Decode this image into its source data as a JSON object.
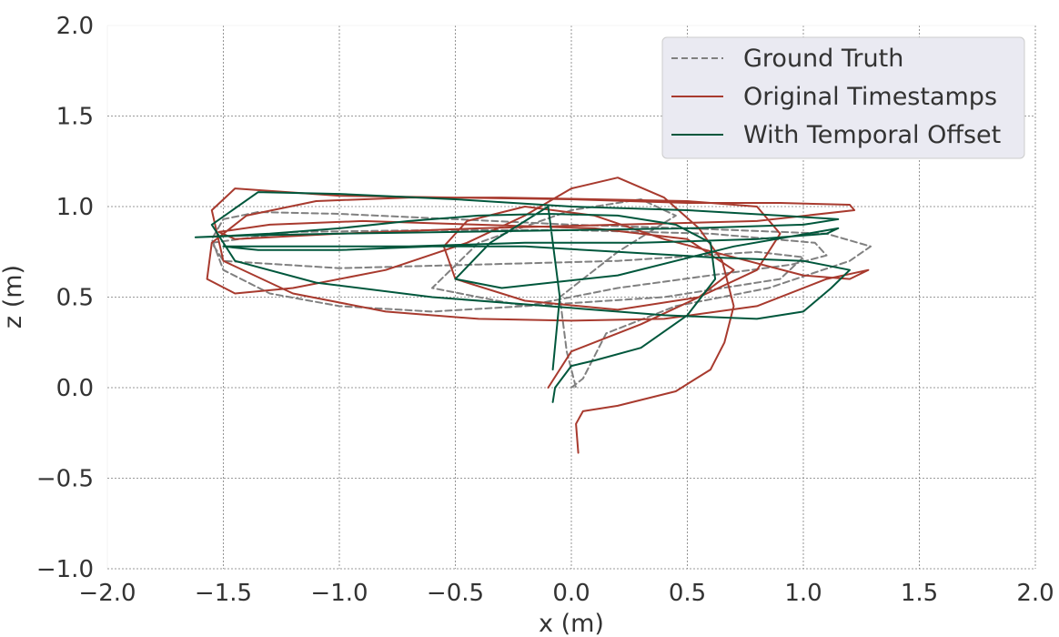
{
  "chart_data": {
    "type": "line",
    "title": "",
    "xlabel": "x (m)",
    "ylabel": "z (m)",
    "xlim": [
      -2.0,
      2.0
    ],
    "ylim": [
      -1.0,
      2.0
    ],
    "xticks": [
      "−2.0",
      "−1.5",
      "−1.0",
      "−0.5",
      "0.0",
      "0.5",
      "1.0",
      "1.5",
      "2.0"
    ],
    "yticks": [
      "−1.0",
      "−0.5",
      "0.0",
      "0.5",
      "1.0",
      "1.5",
      "2.0"
    ],
    "xtick_values": [
      -2.0,
      -1.5,
      -1.0,
      -0.5,
      0.0,
      0.5,
      1.0,
      1.5,
      2.0
    ],
    "ytick_values": [
      -1.0,
      -0.5,
      0.0,
      0.5,
      1.0,
      1.5,
      2.0
    ],
    "grid": true,
    "legend_position": "top-right",
    "series": [
      {
        "name": "Ground Truth",
        "color": "#808080",
        "style": "dashed",
        "x": [
          0.0,
          0.05,
          0.15,
          0.45,
          0.85,
          1.2,
          1.29,
          1.1,
          0.5,
          0.0,
          -0.5,
          -1.0,
          -1.35,
          -1.5,
          -1.55,
          -1.5,
          -1.3,
          -1.0,
          -0.6,
          -0.2,
          0.2,
          0.6,
          0.95,
          1.1,
          1.05,
          0.6,
          0.0,
          -0.6,
          -1.2,
          -1.55,
          -1.5,
          -1.0,
          -0.4,
          0.2,
          0.8,
          1.0,
          0.9,
          0.4,
          -0.2,
          -0.6,
          -0.4,
          0.0,
          0.3,
          0.45,
          0.2,
          -0.05,
          -0.02,
          0.02
        ],
        "y": [
          0.0,
          0.05,
          0.3,
          0.45,
          0.55,
          0.7,
          0.78,
          0.85,
          0.88,
          0.9,
          0.93,
          0.96,
          0.97,
          0.93,
          0.82,
          0.65,
          0.52,
          0.45,
          0.42,
          0.45,
          0.55,
          0.62,
          0.68,
          0.73,
          0.8,
          0.85,
          0.87,
          0.87,
          0.86,
          0.8,
          0.7,
          0.66,
          0.68,
          0.7,
          0.75,
          0.72,
          0.6,
          0.5,
          0.45,
          0.55,
          0.8,
          0.98,
          1.04,
          0.95,
          0.75,
          0.5,
          0.2,
          0.0
        ]
      },
      {
        "name": "Original Timestamps",
        "color": "#a83a2e",
        "style": "solid",
        "x": [
          0.03,
          0.02,
          0.05,
          0.2,
          0.45,
          0.6,
          0.66,
          0.7,
          0.65,
          0.55,
          0.4,
          0.2,
          0.0,
          -0.2,
          -0.45,
          -0.8,
          -1.2,
          -1.45,
          -1.57,
          -1.55,
          -1.4,
          -1.1,
          -0.7,
          -0.3,
          0.1,
          0.5,
          0.8,
          0.9,
          0.8,
          0.55,
          0.2,
          -0.2,
          -0.5,
          -0.55,
          -0.45,
          -0.2,
          0.1,
          0.4,
          0.7,
          1.0,
          1.2,
          1.28,
          1.1,
          0.8,
          0.4,
          0.0,
          -0.4,
          -0.8,
          -1.2,
          -1.5,
          -1.55,
          -1.45,
          -1.0,
          -0.5,
          0.0,
          0.5,
          0.9,
          1.2,
          1.22,
          0.8,
          0.2,
          -0.4,
          -1.0,
          -1.45,
          -1.52,
          -1.3,
          -0.9,
          -0.4,
          0.1,
          0.5,
          0.7,
          0.55,
          0.3,
          0.0,
          -0.1
        ],
        "y": [
          -0.36,
          -0.2,
          -0.13,
          -0.1,
          -0.02,
          0.1,
          0.25,
          0.45,
          0.7,
          0.88,
          1.05,
          1.16,
          1.1,
          0.95,
          0.8,
          0.65,
          0.55,
          0.52,
          0.6,
          0.8,
          0.95,
          1.03,
          1.05,
          1.05,
          1.04,
          1.03,
          1.0,
          0.85,
          0.65,
          0.5,
          0.43,
          0.48,
          0.6,
          0.78,
          0.92,
          1.0,
          0.95,
          0.82,
          0.72,
          0.62,
          0.6,
          0.65,
          0.6,
          0.45,
          0.38,
          0.37,
          0.38,
          0.42,
          0.52,
          0.7,
          0.98,
          1.1,
          1.06,
          1.05,
          1.04,
          1.02,
          1.02,
          1.01,
          0.98,
          0.92,
          0.9,
          0.88,
          0.85,
          0.82,
          0.86,
          0.9,
          0.92,
          0.9,
          0.88,
          0.82,
          0.65,
          0.5,
          0.35,
          0.2,
          0.0
        ]
      },
      {
        "name": "With Temporal Offset",
        "color": "#00573c",
        "style": "solid",
        "x": [
          -0.08,
          -0.07,
          0.0,
          0.1,
          0.3,
          0.5,
          0.62,
          0.6,
          0.45,
          0.2,
          -0.1,
          -0.4,
          -0.7,
          -1.0,
          -1.3,
          -1.45,
          -1.62,
          -1.4,
          -1.0,
          -0.5,
          0.0,
          0.5,
          1.0,
          1.15,
          0.9,
          0.5,
          0.0,
          -0.5,
          -1.0,
          -1.35,
          -1.55,
          -1.45,
          -1.1,
          -0.6,
          -0.1,
          0.4,
          0.8,
          1.0,
          1.12,
          1.2,
          1.0,
          0.6,
          0.2,
          -0.2,
          -0.6,
          -1.0,
          -1.35,
          -1.5,
          -1.2,
          -0.7,
          -0.2,
          0.3,
          0.8,
          1.1,
          1.15,
          0.7,
          0.2,
          -0.3,
          -0.5,
          -0.35,
          -0.1,
          -0.05,
          -0.08
        ],
        "y": [
          -0.08,
          0.0,
          0.12,
          0.15,
          0.22,
          0.4,
          0.6,
          0.8,
          0.9,
          0.95,
          0.96,
          0.95,
          0.92,
          0.88,
          0.85,
          0.84,
          0.83,
          0.84,
          0.85,
          0.86,
          0.87,
          0.88,
          0.9,
          0.93,
          0.95,
          0.98,
          1.0,
          1.04,
          1.07,
          1.08,
          0.9,
          0.7,
          0.58,
          0.5,
          0.45,
          0.4,
          0.38,
          0.42,
          0.55,
          0.65,
          0.7,
          0.72,
          0.75,
          0.78,
          0.78,
          0.76,
          0.76,
          0.78,
          0.78,
          0.78,
          0.8,
          0.8,
          0.82,
          0.85,
          0.88,
          0.78,
          0.62,
          0.55,
          0.6,
          0.8,
          1.0,
          0.5,
          0.1
        ]
      }
    ]
  }
}
